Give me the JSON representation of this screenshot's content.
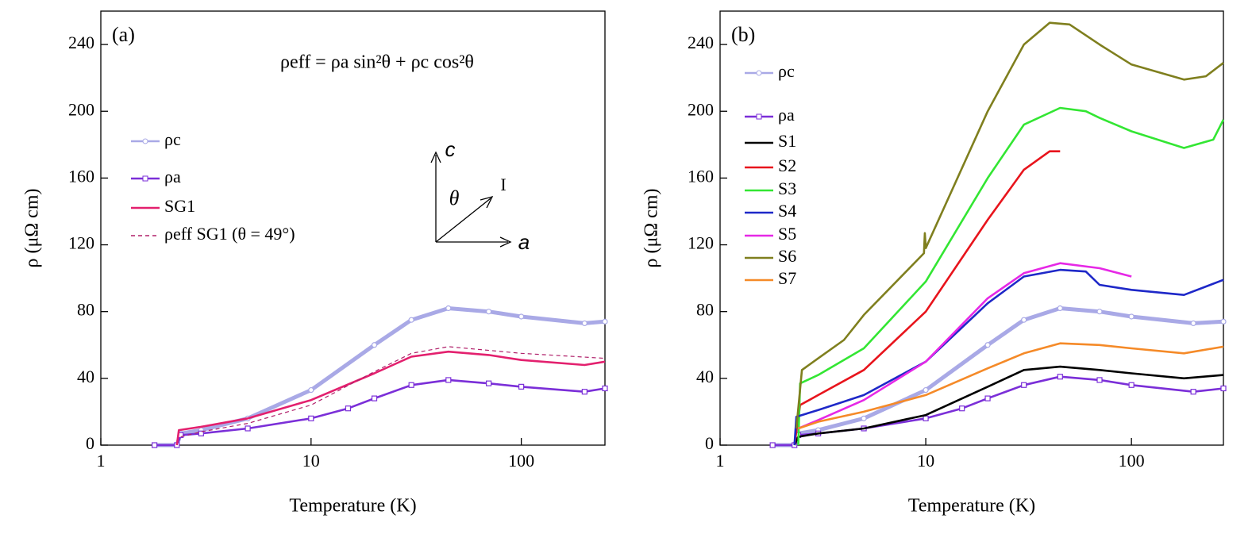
{
  "chart_data": [
    {
      "type": "line",
      "panel_label": "(a)",
      "xlabel": "Temperature (K)",
      "ylabel": "ρ (μΩ cm)",
      "xscale": "log",
      "xlim": [
        1,
        250
      ],
      "xticks": [
        1,
        10,
        100
      ],
      "ylim": [
        0,
        260
      ],
      "yticks": [
        0,
        40,
        80,
        120,
        160,
        200,
        240
      ],
      "annotations": [
        "ρeff = ρa sin²θ + ρc cos²θ",
        "c",
        "θ",
        "I",
        "a"
      ],
      "series": [
        {
          "name": "ρc",
          "color": "#a9a9e6",
          "marker": "circle",
          "linestyle": "solid",
          "x": [
            1.8,
            2.3,
            2.4,
            3,
            5,
            10,
            20,
            30,
            45,
            70,
            100,
            200,
            250
          ],
          "values": [
            0,
            0,
            7,
            9,
            16,
            33,
            60,
            75,
            82,
            80,
            77,
            73,
            74
          ]
        },
        {
          "name": "ρa",
          "color": "#7b2fd8",
          "marker": "square",
          "linestyle": "solid",
          "x": [
            1.8,
            2.3,
            2.4,
            3,
            5,
            10,
            15,
            20,
            30,
            45,
            70,
            100,
            200,
            250
          ],
          "values": [
            0,
            0,
            6,
            7,
            10,
            16,
            22,
            28,
            36,
            39,
            37,
            35,
            32,
            34
          ]
        },
        {
          "name": "SG1",
          "color": "#e3206e",
          "marker": "none",
          "linestyle": "solid",
          "x": [
            2.3,
            2.35,
            3,
            5,
            10,
            20,
            30,
            45,
            70,
            100,
            200,
            250
          ],
          "values": [
            0,
            9,
            11,
            16,
            27,
            43,
            53,
            56,
            54,
            51,
            48,
            50
          ]
        },
        {
          "name": "ρeff SG1 (θ = 49°)",
          "color": "#b0206a",
          "marker": "none",
          "linestyle": "dashed",
          "x": [
            2.4,
            3,
            5,
            10,
            20,
            30,
            45,
            100,
            250
          ],
          "values": [
            5,
            8,
            13,
            24,
            44,
            55,
            59,
            55,
            52
          ]
        }
      ]
    },
    {
      "type": "line",
      "panel_label": "(b)",
      "xlabel": "Temperature (K)",
      "ylabel": "ρ (μΩ cm)",
      "xscale": "log",
      "xlim": [
        1,
        280
      ],
      "xticks": [
        1,
        10,
        100
      ],
      "ylim": [
        0,
        260
      ],
      "yticks": [
        0,
        40,
        80,
        120,
        160,
        200,
        240
      ],
      "series": [
        {
          "name": "ρc",
          "color": "#a9a9e6",
          "marker": "circle",
          "linestyle": "solid",
          "x": [
            1.8,
            2.3,
            2.4,
            3,
            5,
            10,
            20,
            30,
            45,
            70,
            100,
            200,
            280
          ],
          "values": [
            0,
            0,
            7,
            9,
            16,
            33,
            60,
            75,
            82,
            80,
            77,
            73,
            74
          ]
        },
        {
          "name": "ρa",
          "color": "#7b2fd8",
          "marker": "square",
          "linestyle": "solid",
          "x": [
            1.8,
            2.3,
            2.4,
            3,
            5,
            10,
            15,
            20,
            30,
            45,
            70,
            100,
            200,
            280
          ],
          "values": [
            0,
            0,
            6,
            7,
            10,
            16,
            22,
            28,
            36,
            41,
            39,
            36,
            32,
            34
          ]
        },
        {
          "name": "S1",
          "color": "#000000",
          "marker": "none",
          "linestyle": "solid",
          "x": [
            2.3,
            2.4,
            3,
            5,
            10,
            20,
            30,
            45,
            70,
            100,
            180,
            280
          ],
          "values": [
            0,
            5,
            7,
            10,
            18,
            35,
            45,
            47,
            45,
            43,
            40,
            42
          ]
        },
        {
          "name": "S2",
          "color": "#e8141c",
          "marker": "none",
          "linestyle": "solid",
          "x": [
            2.3,
            2.45,
            3,
            5,
            10,
            20,
            30,
            40,
            45
          ],
          "values": [
            0,
            24,
            30,
            45,
            80,
            135,
            165,
            176,
            176
          ]
        },
        {
          "name": "S3",
          "color": "#33e633",
          "marker": "none",
          "linestyle": "solid",
          "x": [
            2.4,
            2.45,
            3,
            5,
            10,
            20,
            30,
            45,
            60,
            70,
            100,
            180,
            250,
            280
          ],
          "values": [
            0,
            37,
            42,
            58,
            98,
            160,
            192,
            202,
            200,
            196,
            188,
            178,
            183,
            195
          ]
        },
        {
          "name": "S4",
          "color": "#1e28c8",
          "marker": "none",
          "linestyle": "solid",
          "x": [
            2.3,
            2.35,
            3,
            5,
            10,
            20,
            30,
            45,
            60,
            70,
            100,
            180,
            280
          ],
          "values": [
            0,
            17,
            21,
            30,
            50,
            85,
            101,
            105,
            104,
            96,
            93,
            90,
            99
          ]
        },
        {
          "name": "S5",
          "color": "#e628e6",
          "marker": "none",
          "linestyle": "solid",
          "x": [
            2.4,
            3,
            5,
            10,
            20,
            30,
            45,
            70,
            100
          ],
          "values": [
            10,
            15,
            27,
            50,
            88,
            103,
            109,
            106,
            101
          ]
        },
        {
          "name": "S6",
          "color": "#7f7f1e",
          "marker": "none",
          "linestyle": "solid",
          "x": [
            2.35,
            2.5,
            3,
            4,
            5,
            9.8,
            9.9,
            10,
            20,
            30,
            40,
            50,
            70,
            100,
            180,
            230,
            280
          ],
          "values": [
            10,
            45,
            52,
            63,
            78,
            115,
            127,
            118,
            200,
            240,
            253,
            252,
            240,
            228,
            219,
            221,
            229
          ]
        },
        {
          "name": "S7",
          "color": "#f58a28",
          "marker": "none",
          "linestyle": "solid",
          "x": [
            2.4,
            3,
            5,
            10,
            20,
            30,
            45,
            70,
            100,
            180,
            280
          ],
          "values": [
            10,
            14,
            20,
            30,
            46,
            55,
            61,
            60,
            58,
            55,
            59
          ]
        }
      ]
    }
  ]
}
